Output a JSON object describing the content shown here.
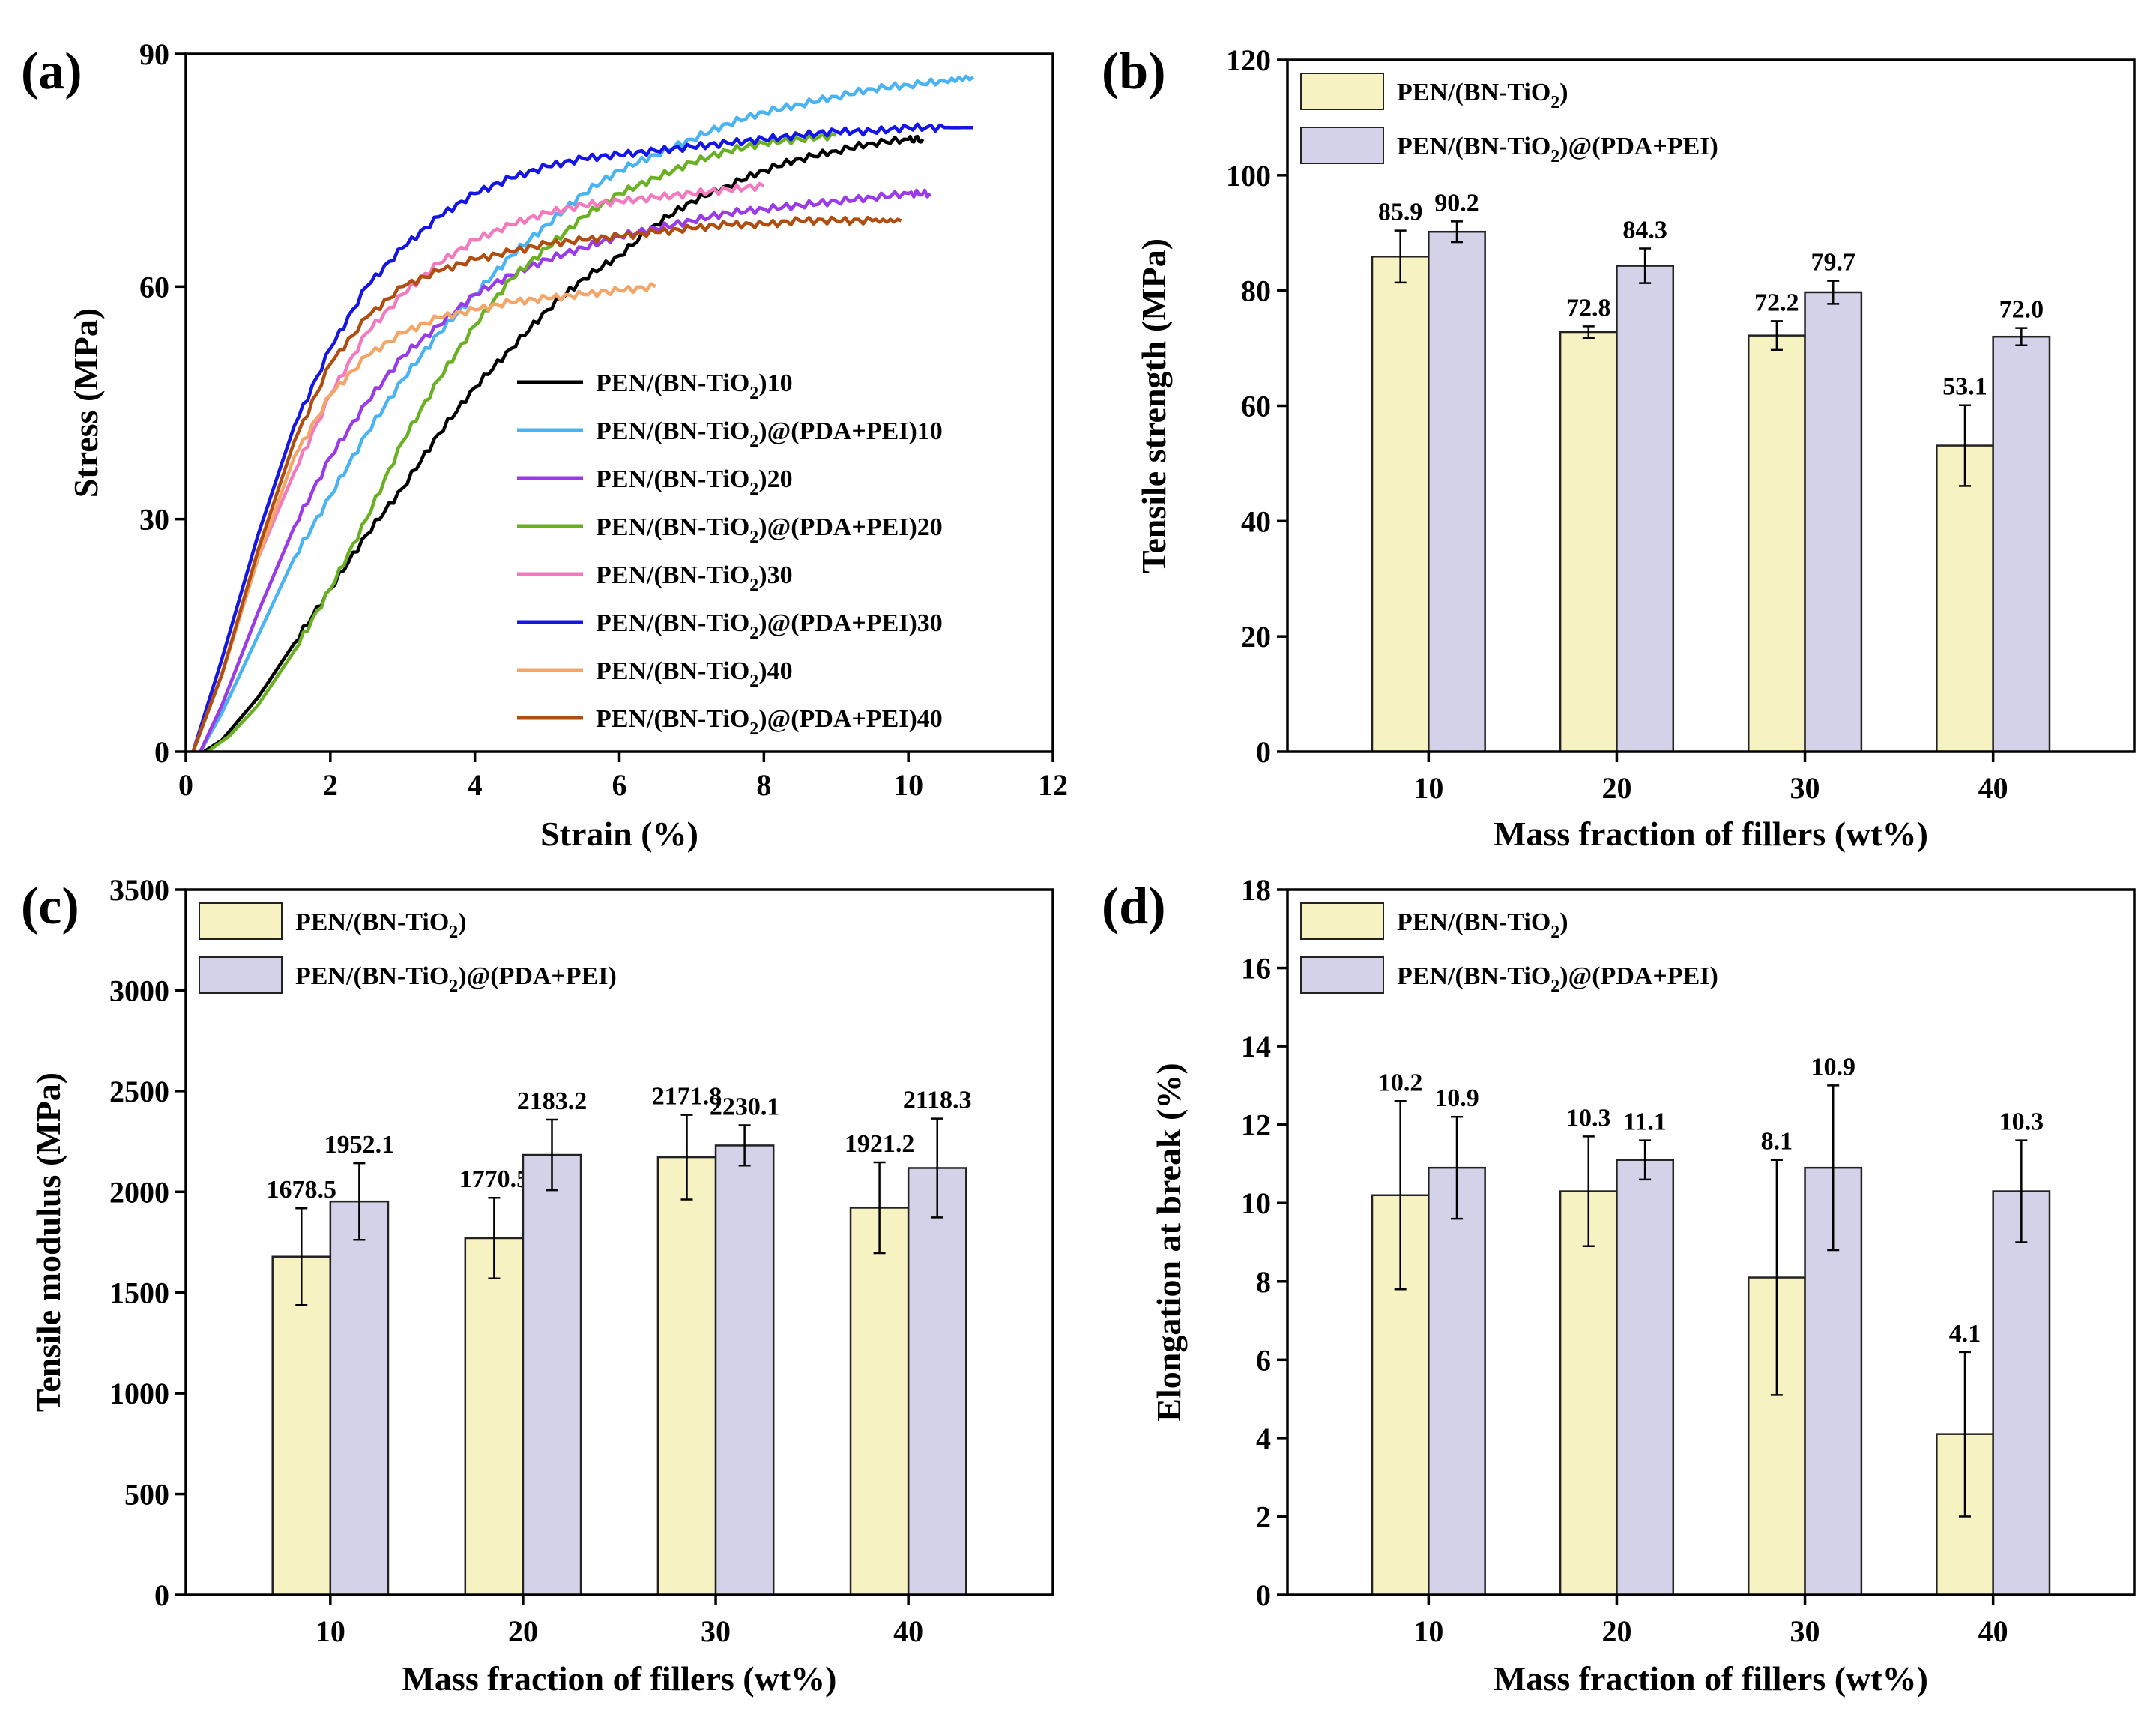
{
  "colors": {
    "bar_a": "#f7f2c2",
    "bar_b": "#d3d2e8",
    "bar_stroke": "#222222"
  },
  "chart_data": [
    {
      "panel": "(a)",
      "type": "line",
      "title": "",
      "xlabel": "Strain (%)",
      "ylabel": "Stress (MPa)",
      "xlim": [
        0,
        12
      ],
      "ylim": [
        0,
        90
      ],
      "xticks": [
        "0",
        "2",
        "4",
        "6",
        "8",
        "10",
        "12"
      ],
      "yticks": [
        "0",
        "30",
        "60",
        "90"
      ],
      "legend_position": "bottom-right",
      "series": [
        {
          "name": "PEN/(BN-TiO",
          "sub": "2",
          "suffix": ")10",
          "color": "#000000",
          "points": [
            [
              0.25,
              0
            ],
            [
              0.5,
              1.5
            ],
            [
              1,
              7
            ],
            [
              1.5,
              14
            ],
            [
              2,
              21
            ],
            [
              2.5,
              28
            ],
            [
              3,
              34
            ],
            [
              3.5,
              41
            ],
            [
              4,
              47
            ],
            [
              4.5,
              52
            ],
            [
              5,
              57
            ],
            [
              5.5,
              61
            ],
            [
              6,
              64
            ],
            [
              6.5,
              68
            ],
            [
              7,
              71
            ],
            [
              7.5,
              73
            ],
            [
              8,
              75
            ],
            [
              8.5,
              76.5
            ],
            [
              9,
              77.5
            ],
            [
              9.5,
              78.5
            ],
            [
              10,
              79
            ],
            [
              10.2,
              79
            ]
          ]
        },
        {
          "name": "PEN/(BN-TiO",
          "sub": "2",
          "suffix": ")@(PDA+PEI)10",
          "color": "#4ab4f2",
          "points": [
            [
              0.2,
              0
            ],
            [
              0.5,
              5
            ],
            [
              1,
              15
            ],
            [
              1.5,
              25
            ],
            [
              2,
              33
            ],
            [
              2.5,
              41
            ],
            [
              3,
              48
            ],
            [
              3.5,
              54
            ],
            [
              4,
              59
            ],
            [
              4.5,
              64
            ],
            [
              5,
              68
            ],
            [
              5.5,
              72
            ],
            [
              6,
              75
            ],
            [
              6.5,
              77
            ],
            [
              7,
              79
            ],
            [
              7.5,
              81
            ],
            [
              8,
              82.5
            ],
            [
              8.5,
              83.5
            ],
            [
              9,
              84.5
            ],
            [
              9.5,
              85.5
            ],
            [
              10,
              86
            ],
            [
              10.5,
              86.5
            ],
            [
              10.9,
              87
            ]
          ]
        },
        {
          "name": "PEN/(BN-TiO",
          "sub": "2",
          "suffix": ")20",
          "color": "#9b3be8",
          "points": [
            [
              0.2,
              0
            ],
            [
              0.5,
              6
            ],
            [
              1,
              18
            ],
            [
              1.5,
              29
            ],
            [
              2,
              38
            ],
            [
              2.5,
              45
            ],
            [
              3,
              51
            ],
            [
              3.5,
              55
            ],
            [
              4,
              59
            ],
            [
              4.5,
              61.5
            ],
            [
              5,
              63.5
            ],
            [
              5.5,
              65
            ],
            [
              6,
              66.5
            ],
            [
              6.5,
              67.5
            ],
            [
              7,
              68.5
            ],
            [
              7.5,
              69.5
            ],
            [
              8,
              70
            ],
            [
              8.5,
              70.5
            ],
            [
              9,
              71
            ],
            [
              9.5,
              71.5
            ],
            [
              10,
              72
            ],
            [
              10.3,
              72
            ]
          ]
        },
        {
          "name": "PEN/(BN-TiO",
          "sub": "2",
          "suffix": ")@(PDA+PEI)20",
          "color": "#6ab023",
          "points": [
            [
              0.3,
              0
            ],
            [
              0.6,
              2
            ],
            [
              1,
              6
            ],
            [
              1.5,
              13
            ],
            [
              2,
              21
            ],
            [
              2.5,
              30
            ],
            [
              3,
              40
            ],
            [
              3.5,
              48
            ],
            [
              4,
              55
            ],
            [
              4.5,
              61
            ],
            [
              5,
              65
            ],
            [
              5.5,
              69
            ],
            [
              6,
              72
            ],
            [
              6.5,
              74
            ],
            [
              7,
              76
            ],
            [
              7.5,
              77.5
            ],
            [
              8,
              78.5
            ],
            [
              8.5,
              79
            ],
            [
              9,
              79.5
            ]
          ]
        },
        {
          "name": "PEN/(BN-TiO",
          "sub": "2",
          "suffix": ")30",
          "color": "#f27bbf",
          "points": [
            [
              0.1,
              0
            ],
            [
              0.5,
              10
            ],
            [
              1,
              25
            ],
            [
              1.5,
              36
            ],
            [
              2,
              46
            ],
            [
              2.5,
              54
            ],
            [
              3,
              59
            ],
            [
              3.5,
              63
            ],
            [
              4,
              66
            ],
            [
              4.5,
              68
            ],
            [
              5,
              69.5
            ],
            [
              5.5,
              70.5
            ],
            [
              6,
              71
            ],
            [
              6.5,
              71.5
            ],
            [
              7,
              72
            ],
            [
              7.5,
              72.5
            ],
            [
              8,
              73
            ]
          ]
        },
        {
          "name": "PEN/(BN-TiO",
          "sub": "2",
          "suffix": ")@(PDA+PEI)30",
          "color": "#1515e6",
          "points": [
            [
              0.1,
              0
            ],
            [
              0.5,
              12
            ],
            [
              1,
              28
            ],
            [
              1.5,
              42
            ],
            [
              2,
              52
            ],
            [
              2.5,
              60
            ],
            [
              3,
              65
            ],
            [
              3.5,
              69
            ],
            [
              4,
              72
            ],
            [
              4.5,
              74
            ],
            [
              5,
              75.5
            ],
            [
              5.5,
              76.5
            ],
            [
              6,
              77
            ],
            [
              6.5,
              77.5
            ],
            [
              7,
              78
            ],
            [
              7.5,
              78.5
            ],
            [
              8,
              79
            ],
            [
              8.5,
              79.5
            ],
            [
              9,
              80
            ],
            [
              9.5,
              80
            ],
            [
              10,
              80.5
            ],
            [
              10.5,
              80.5
            ],
            [
              10.9,
              80.5
            ]
          ]
        },
        {
          "name": "PEN/(BN-TiO",
          "sub": "2",
          "suffix": ")40",
          "color": "#f2a66a",
          "points": [
            [
              0.1,
              0
            ],
            [
              0.5,
              10
            ],
            [
              1,
              25
            ],
            [
              1.5,
              38
            ],
            [
              2,
              46
            ],
            [
              2.5,
              51
            ],
            [
              3,
              54
            ],
            [
              3.5,
              56
            ],
            [
              4,
              57
            ],
            [
              4.5,
              58
            ],
            [
              5,
              58.5
            ],
            [
              5.5,
              59
            ],
            [
              6,
              59.5
            ],
            [
              6.5,
              60
            ]
          ]
        },
        {
          "name": "PEN/(BN-TiO",
          "sub": "2",
          "suffix": ")@(PDA+PEI)40",
          "color": "#b04e10",
          "points": [
            [
              0.1,
              0
            ],
            [
              0.5,
              10
            ],
            [
              1,
              26
            ],
            [
              1.5,
              40
            ],
            [
              2,
              50
            ],
            [
              2.5,
              56
            ],
            [
              3,
              60
            ],
            [
              3.5,
              62
            ],
            [
              4,
              63.5
            ],
            [
              4.5,
              64.5
            ],
            [
              5,
              65.5
            ],
            [
              5.5,
              66
            ],
            [
              6,
              66.5
            ],
            [
              6.5,
              67
            ],
            [
              7,
              67.5
            ],
            [
              7.5,
              68
            ],
            [
              8,
              68
            ],
            [
              8.5,
              68.5
            ],
            [
              9,
              68.5
            ],
            [
              9.5,
              68.5
            ],
            [
              9.9,
              68.5
            ]
          ]
        }
      ]
    },
    {
      "panel": "(b)",
      "type": "bar",
      "xlabel": "Mass fraction of  fillers (wt%)",
      "ylabel": "Tensile strength (MPa)",
      "ylim": [
        0,
        120
      ],
      "yticks": [
        "0",
        "20",
        "40",
        "60",
        "80",
        "100",
        "120"
      ],
      "categories": [
        "10",
        "20",
        "30",
        "40"
      ],
      "legend_position": "top-left",
      "series": [
        {
          "name": "PEN/(BN-TiO",
          "sub": "2",
          "suffix": ")",
          "values": [
            85.9,
            72.8,
            72.2,
            53.1
          ],
          "labels": [
            "85.9",
            "72.8",
            "72.2",
            "53.1"
          ],
          "errors": [
            4.5,
            1.0,
            2.5,
            7.0
          ]
        },
        {
          "name": "PEN/(BN-TiO",
          "sub": "2",
          "suffix": ")@(PDA+PEI)",
          "values": [
            90.2,
            84.3,
            79.7,
            72.0
          ],
          "labels": [
            "90.2",
            "84.3",
            "79.7",
            "72.0"
          ],
          "errors": [
            1.8,
            3.0,
            2.0,
            1.5
          ]
        }
      ]
    },
    {
      "panel": "(c)",
      "type": "bar",
      "xlabel": "Mass fraction of  fillers (wt%)",
      "ylabel": "Tensile modulus (MPa)",
      "ylim": [
        0,
        3500
      ],
      "yticks": [
        "0",
        "500",
        "1000",
        "1500",
        "2000",
        "2500",
        "3000",
        "3500"
      ],
      "categories": [
        "10",
        "20",
        "30",
        "40"
      ],
      "legend_position": "top-left",
      "series": [
        {
          "name": "PEN/(BN-TiO",
          "sub": "2",
          "suffix": ")",
          "values": [
            1678.5,
            1770.5,
            2171.8,
            1921.2
          ],
          "labels": [
            "1678.5",
            "1770.5",
            "2171.8",
            "1921.2"
          ],
          "errors": [
            240,
            200,
            210,
            225
          ]
        },
        {
          "name": "PEN/(BN-TiO",
          "sub": "2",
          "suffix": ")@(PDA+PEI)",
          "values": [
            1952.1,
            2183.2,
            2230.1,
            2118.3
          ],
          "labels": [
            "1952.1",
            "2183.2",
            "2230.1",
            "2118.3"
          ],
          "errors": [
            190,
            175,
            100,
            245
          ]
        }
      ]
    },
    {
      "panel": "(d)",
      "type": "bar",
      "xlabel": "Mass fraction of  fillers (wt%)",
      "ylabel": "Elongation at break (%)",
      "ylim": [
        0,
        18
      ],
      "yticks": [
        "0",
        "2",
        "4",
        "6",
        "8",
        "10",
        "12",
        "14",
        "16",
        "18"
      ],
      "categories": [
        "10",
        "20",
        "30",
        "40"
      ],
      "legend_position": "top-left",
      "series": [
        {
          "name": "PEN/(BN-TiO",
          "sub": "2",
          "suffix": ")",
          "values": [
            10.2,
            10.3,
            8.1,
            4.1
          ],
          "labels": [
            "10.2",
            "10.3",
            "8.1",
            "4.1"
          ],
          "errors": [
            2.4,
            1.4,
            3.0,
            2.1
          ]
        },
        {
          "name": "PEN/(BN-TiO",
          "sub": "2",
          "suffix": ")@(PDA+PEI)",
          "values": [
            10.9,
            11.1,
            10.9,
            10.3
          ],
          "labels": [
            "10.9",
            "11.1",
            "10.9",
            "10.3"
          ],
          "errors": [
            1.3,
            0.5,
            2.1,
            1.3
          ]
        }
      ]
    }
  ]
}
